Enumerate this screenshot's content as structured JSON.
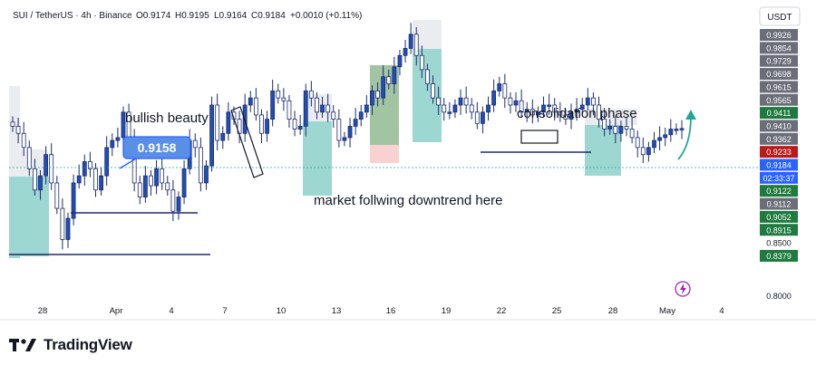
{
  "header": {
    "symbol": "SUI / TetherUS · 4h · Binance",
    "open": "O0.9174",
    "high": "H0.9195",
    "low": "L0.9164",
    "close": "C0.9184",
    "change": "+0.0010 (+0.11%)",
    "currency_badge": "USDT"
  },
  "brand": {
    "name": "TradingView",
    "logo_icon": "tradingview-logo-icon"
  },
  "colors": {
    "bull": "#26a69a",
    "bear": "#1e2b6e",
    "body_up": "#1f4fb5",
    "accent": "#2962ff",
    "red": "#b71c1c",
    "green_zone": "#26a69a",
    "grey_zone": "#d1d4dc"
  },
  "annotations": {
    "bullish": "bullish beauty",
    "downtrend": "market follwing downtrend here",
    "consolidation": "consolidation phase",
    "callout_price": "0.9158"
  },
  "price_scale": {
    "labels": [
      {
        "text": "0.9926",
        "style": "grey"
      },
      {
        "text": "0.9854",
        "style": "grey"
      },
      {
        "text": "0.9729",
        "style": "grey"
      },
      {
        "text": "0.9698",
        "style": "grey"
      },
      {
        "text": "0.9615",
        "style": "grey"
      },
      {
        "text": "0.9565",
        "style": "grey"
      },
      {
        "text": "0.9411",
        "style": "green"
      },
      {
        "text": "0.9410",
        "style": "grey"
      },
      {
        "text": "0.9362",
        "style": "grey"
      },
      {
        "text": "0.9233",
        "style": "red"
      },
      {
        "text": "0.9184",
        "style": "blue"
      },
      {
        "text": "02:33:37",
        "style": "blue"
      },
      {
        "text": "0.9122",
        "style": "green"
      },
      {
        "text": "0.9112",
        "style": "grey"
      },
      {
        "text": "0.9052",
        "style": "green"
      },
      {
        "text": "0.8915",
        "style": "green"
      },
      {
        "text": "0.8500",
        "style": "plain"
      },
      {
        "text": "0.8379",
        "style": "green"
      },
      {
        "text": "0.8000",
        "style": "plain"
      }
    ]
  },
  "chart_data": {
    "type": "candlestick",
    "title": "SUI / TetherUS · 4h · Binance",
    "x_ticks": [
      "28",
      "Apr",
      "4",
      "7",
      "10",
      "13",
      "16",
      "19",
      "22",
      "25",
      "28",
      "May",
      "4"
    ],
    "ylim": [
      0.8,
      0.99
    ],
    "last_price": 0.9184,
    "close_path": [
      0.92,
      0.915,
      0.905,
      0.89,
      0.875,
      0.885,
      0.9,
      0.88,
      0.862,
      0.84,
      0.855,
      0.88,
      0.885,
      0.895,
      0.89,
      0.875,
      0.885,
      0.905,
      0.91,
      0.912,
      0.93,
      0.91,
      0.88,
      0.87,
      0.885,
      0.878,
      0.89,
      0.88,
      0.875,
      0.86,
      0.87,
      0.89,
      0.91,
      0.905,
      0.88,
      0.892,
      0.935,
      0.91,
      0.915,
      0.93,
      0.925,
      0.915,
      0.935,
      0.94,
      0.928,
      0.915,
      0.925,
      0.945,
      0.94,
      0.938,
      0.925,
      0.918,
      0.92,
      0.945,
      0.94,
      0.93,
      0.935,
      0.93,
      0.925,
      0.91,
      0.912,
      0.92,
      0.925,
      0.93,
      0.935,
      0.945,
      0.94,
      0.955,
      0.95,
      0.962,
      0.97,
      0.975,
      0.985,
      0.97,
      0.96,
      0.95,
      0.94,
      0.935,
      0.93,
      0.93,
      0.935,
      0.94,
      0.935,
      0.93,
      0.922,
      0.93,
      0.935,
      0.945,
      0.95,
      0.94,
      0.935,
      0.938,
      0.93,
      0.932,
      0.928,
      0.93,
      0.935,
      0.935,
      0.93,
      0.928,
      0.925,
      0.93,
      0.932,
      0.935,
      0.94,
      0.935,
      0.925,
      0.918,
      0.92,
      0.915,
      0.92,
      0.918,
      0.912,
      0.905,
      0.9,
      0.905,
      0.91,
      0.912,
      0.914,
      0.918,
      0.918,
      0.9184
    ],
    "zones": [
      {
        "name": "left-zone",
        "x_from": "26",
        "x_to": "28",
        "color": "green"
      },
      {
        "name": "zone-downtrend",
        "x_from": "11",
        "x_to": "13",
        "color": "green"
      },
      {
        "name": "zone-16",
        "x_from": "15",
        "x_to": "16",
        "color": "green"
      },
      {
        "name": "zone-17",
        "x_from": "17",
        "x_to": "18",
        "color": "green"
      },
      {
        "name": "zone-27",
        "x_from": "26",
        "x_to": "28",
        "color": "green"
      }
    ],
    "projection": "up",
    "grid": false,
    "legend": "none"
  }
}
